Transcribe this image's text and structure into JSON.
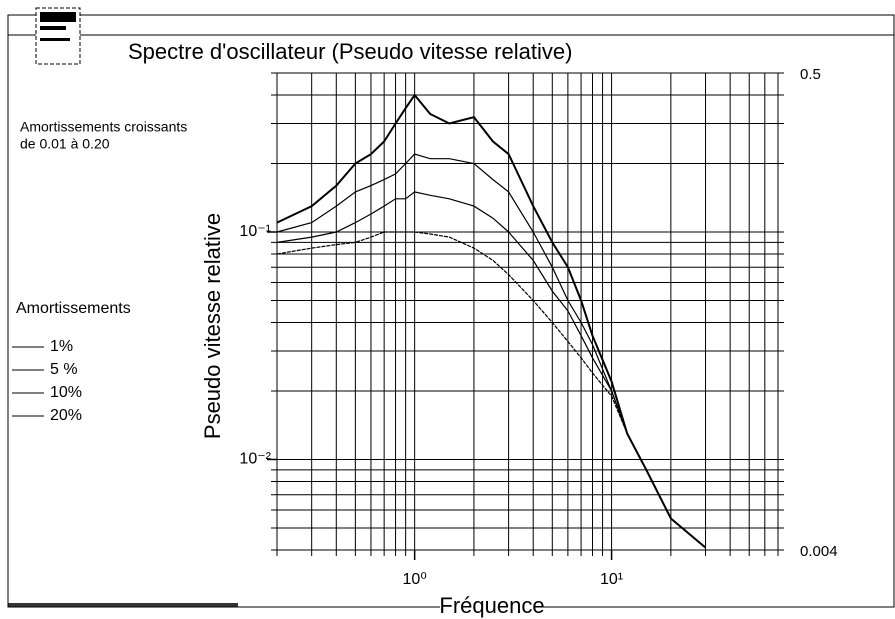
{
  "chart_data": {
    "type": "line",
    "title": "Spectre d'oscillateur (Pseudo vitesse relative)",
    "annotation": [
      "Amortissements croissants",
      "de 0.01 à 0.20"
    ],
    "legend_title": "Amortissements",
    "xlabel": "Fréquence",
    "ylabel": "Pseudo vitesse relative",
    "xscale": "log",
    "yscale": "log",
    "grid": true,
    "legend": "left",
    "xlim": [
      0.2,
      70
    ],
    "ylim": [
      0.004,
      0.5
    ],
    "xticks": [
      {
        "value": 1,
        "label": "10⁰"
      },
      {
        "value": 10,
        "label": "10¹"
      }
    ],
    "yticks": [
      {
        "value": 0.01,
        "label": "10⁻²"
      },
      {
        "value": 0.1,
        "label": "10⁻¹"
      }
    ],
    "xgrid": [
      0.2,
      0.3,
      0.4,
      0.5,
      0.6,
      0.7,
      0.8,
      0.9,
      1,
      2,
      3,
      4,
      5,
      6,
      7,
      8,
      9,
      10,
      20,
      30,
      40,
      50,
      60,
      70
    ],
    "ygrid": [
      0.004,
      0.005,
      0.006,
      0.007,
      0.008,
      0.009,
      0.01,
      0.02,
      0.03,
      0.04,
      0.05,
      0.06,
      0.07,
      0.08,
      0.09,
      0.1,
      0.2,
      0.3,
      0.4,
      0.5
    ],
    "x": [
      0.2,
      0.3,
      0.4,
      0.5,
      0.6,
      0.7,
      0.8,
      0.9,
      1,
      1.2,
      1.5,
      2,
      2.5,
      3,
      4,
      5,
      6,
      7,
      8,
      10,
      12,
      15,
      20,
      30
    ],
    "series": [
      {
        "name": "1%",
        "color": "#000000",
        "values": [
          0.11,
          0.13,
          0.16,
          0.2,
          0.22,
          0.25,
          0.3,
          0.35,
          0.4,
          0.33,
          0.3,
          0.32,
          0.25,
          0.22,
          0.13,
          0.09,
          0.07,
          0.05,
          0.035,
          0.022,
          0.013,
          0.009,
          0.0055,
          0.0041
        ]
      },
      {
        "name": "5 %",
        "color": "#000000",
        "values": [
          0.1,
          0.11,
          0.13,
          0.15,
          0.16,
          0.17,
          0.18,
          0.2,
          0.22,
          0.21,
          0.21,
          0.2,
          0.17,
          0.15,
          0.1,
          0.07,
          0.05,
          0.04,
          0.032,
          0.02,
          0.013,
          0.009,
          0.0055,
          0.0041
        ]
      },
      {
        "name": "10%",
        "color": "#000000",
        "values": [
          0.09,
          0.095,
          0.1,
          0.11,
          0.12,
          0.13,
          0.14,
          0.14,
          0.15,
          0.145,
          0.14,
          0.13,
          0.115,
          0.1,
          0.075,
          0.055,
          0.045,
          0.035,
          0.028,
          0.02,
          0.013,
          0.009,
          0.0055,
          0.0041
        ]
      },
      {
        "name": "20%",
        "color": "#000000",
        "values": [
          0.08,
          0.085,
          0.088,
          0.09,
          0.095,
          0.1,
          0.1,
          0.1,
          0.1,
          0.098,
          0.095,
          0.085,
          0.075,
          0.065,
          0.05,
          0.04,
          0.033,
          0.028,
          0.024,
          0.019,
          0.013,
          0.009,
          0.0055,
          0.0041
        ]
      }
    ]
  }
}
